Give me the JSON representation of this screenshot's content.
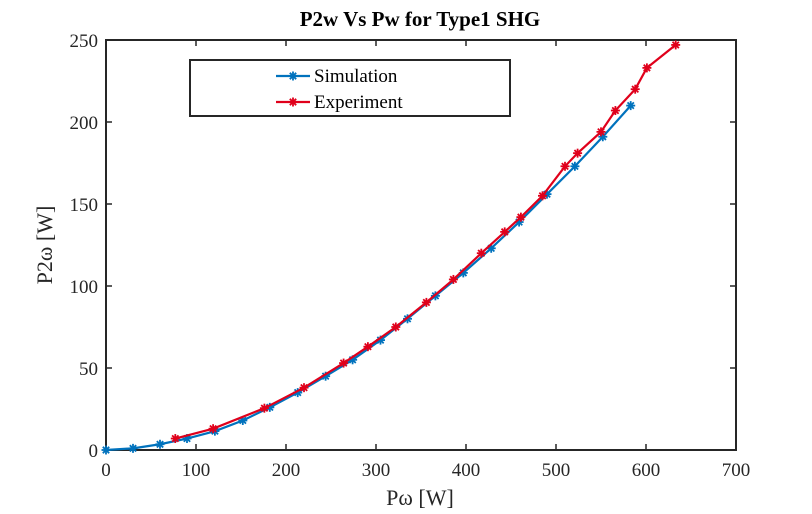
{
  "chart_data": {
    "type": "line",
    "title": "P2w Vs Pw for Type1 SHG",
    "xlabel": "Pω [W]",
    "ylabel": "P2ω [W]",
    "xlim": [
      0,
      700
    ],
    "ylim": [
      0,
      250
    ],
    "xticks": [
      0,
      100,
      200,
      300,
      400,
      500,
      600,
      700
    ],
    "yticks": [
      0,
      50,
      100,
      150,
      200,
      250
    ],
    "grid": false,
    "legend_position": "top-left",
    "series": [
      {
        "name": "Simulation",
        "color": "#0072BD",
        "marker": "asterisk",
        "x": [
          0,
          30,
          60,
          90,
          121,
          152,
          182,
          213,
          244,
          274,
          305,
          335,
          366,
          397,
          428,
          459,
          490,
          521,
          552,
          583
        ],
        "y": [
          0,
          1,
          3.5,
          7,
          11.5,
          18,
          26,
          35,
          45,
          55,
          67,
          80,
          94,
          108,
          123,
          139,
          156,
          173,
          191,
          210
        ]
      },
      {
        "name": "Experiment",
        "color": "#E0001B",
        "marker": "asterisk",
        "x": [
          77,
          119,
          176,
          220,
          264,
          291,
          322,
          356,
          386,
          417,
          443,
          461,
          485,
          510,
          524,
          550,
          566,
          588,
          601,
          633
        ],
        "y": [
          7,
          13,
          25.5,
          38,
          53,
          63,
          75,
          90,
          104,
          120,
          133,
          142,
          155,
          173,
          181,
          194,
          207,
          220,
          233,
          247
        ]
      }
    ]
  }
}
